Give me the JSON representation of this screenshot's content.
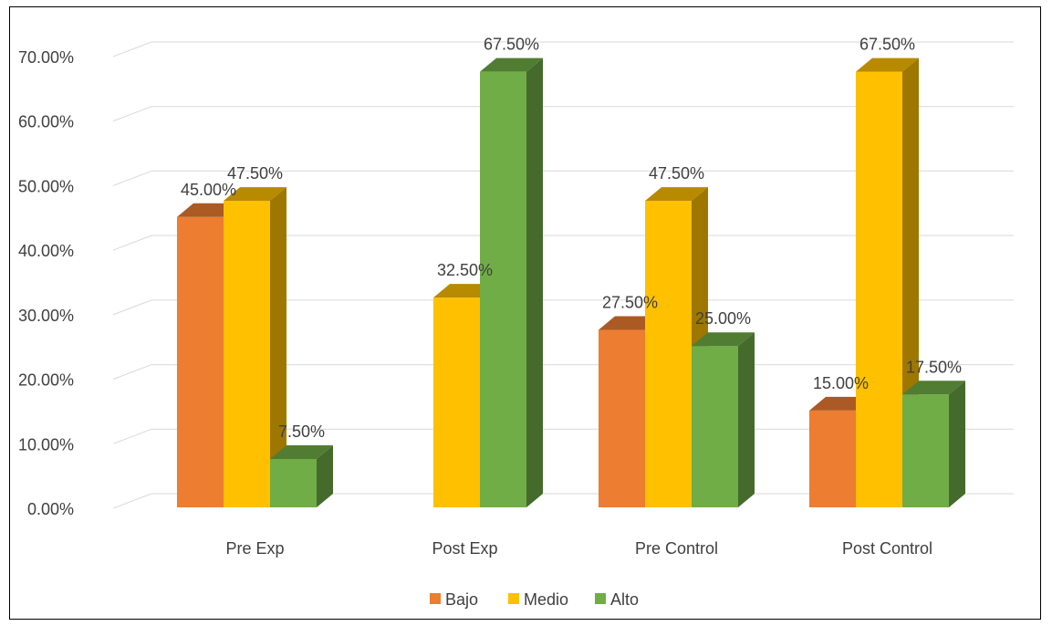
{
  "chart_data": {
    "type": "bar",
    "categories": [
      "Pre Exp",
      "Post Exp",
      "Pre Control",
      "Post Control"
    ],
    "series": [
      {
        "name": "Bajo",
        "values": [
          45.0,
          0.0,
          27.5,
          15.0
        ],
        "labels": [
          "45.00%",
          "",
          "27.50%",
          "15.00%"
        ],
        "color": "#ED7D31"
      },
      {
        "name": "Medio",
        "values": [
          47.5,
          32.5,
          47.5,
          67.5
        ],
        "labels": [
          "47.50%",
          "32.50%",
          "47.50%",
          "67.50%"
        ],
        "color": "#FFC000"
      },
      {
        "name": "Alto",
        "values": [
          7.5,
          67.5,
          25.0,
          17.5
        ],
        "labels": [
          "7.50%",
          "67.50%",
          "25.00%",
          "17.50%"
        ],
        "color": "#70AD47"
      }
    ],
    "y_ticks": [
      "0.00%",
      "10.00%",
      "20.00%",
      "30.00%",
      "40.00%",
      "50.00%",
      "60.00%",
      "70.00%"
    ],
    "ylim": [
      0,
      70
    ],
    "grid": true,
    "legend_position": "bottom",
    "style": "3d-clustered-column"
  }
}
